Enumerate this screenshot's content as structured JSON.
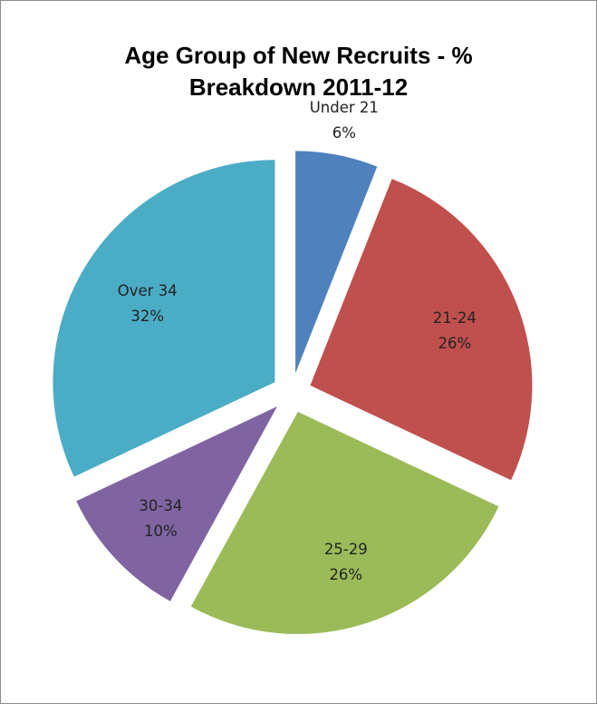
{
  "chart_data": {
    "type": "pie",
    "title_lines": [
      "Age Group of New Recruits - %",
      "Breakdown 2011-12"
    ],
    "exploded": true,
    "slices": [
      {
        "name": "Under 21",
        "percent_label": "6%",
        "value": 6,
        "color": "#4f81bd"
      },
      {
        "name": "21-24",
        "percent_label": "26%",
        "value": 26,
        "color": "#c0504d"
      },
      {
        "name": "25-29",
        "percent_label": "26%",
        "value": 26,
        "color": "#9bbb59"
      },
      {
        "name": "30-34",
        "percent_label": "10%",
        "value": 10,
        "color": "#8064a2"
      },
      {
        "name": "Over 34",
        "percent_label": "32%",
        "value": 32,
        "color": "#4bacc6"
      }
    ]
  }
}
